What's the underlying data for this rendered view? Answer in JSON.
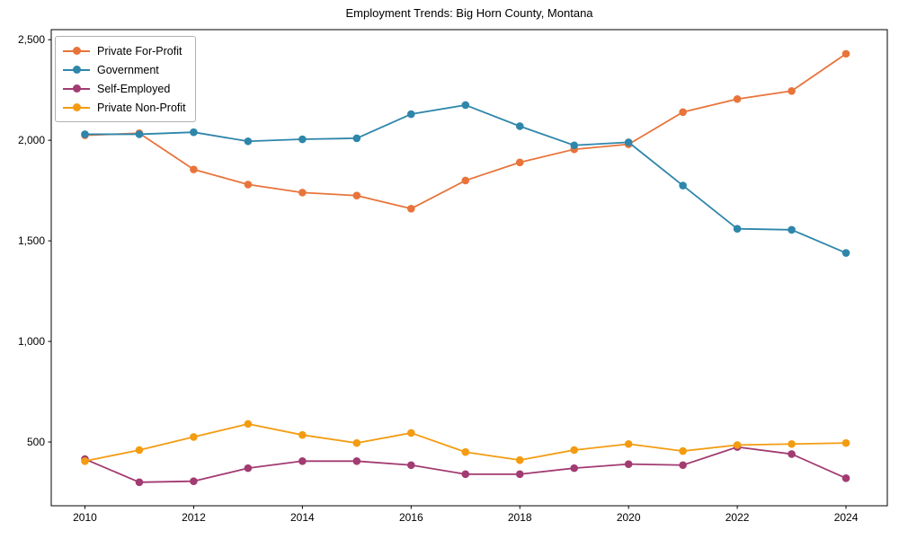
{
  "figure": {
    "title": "Employment Trends: Big Horn County, Montana"
  },
  "chart_data": {
    "type": "line",
    "title": "Employment Trends: Big Horn County, Montana",
    "xlabel": "",
    "ylabel": "",
    "x": [
      2010,
      2011,
      2012,
      2013,
      2014,
      2015,
      2016,
      2017,
      2018,
      2019,
      2020,
      2021,
      2022,
      2023,
      2024
    ],
    "series": [
      {
        "name": "Private For-Profit",
        "color": "#e8743b",
        "values": [
          2025,
          2035,
          1855,
          1780,
          1740,
          1725,
          1660,
          1800,
          1890,
          1955,
          1980,
          2140,
          2205,
          2245,
          2430
        ]
      },
      {
        "name": "Government",
        "color": "#2e86ab",
        "values": [
          2030,
          2030,
          2040,
          1995,
          2005,
          2010,
          2130,
          2175,
          2070,
          1975,
          1990,
          1775,
          1560,
          1555,
          1440
        ]
      },
      {
        "name": "Self-Employed",
        "color": "#a23b72",
        "values": [
          415,
          300,
          305,
          370,
          405,
          405,
          385,
          340,
          340,
          370,
          390,
          385,
          475,
          440,
          320
        ]
      },
      {
        "name": "Private Non-Profit",
        "color": "#f39c12",
        "values": [
          405,
          460,
          525,
          590,
          535,
          495,
          545,
          450,
          410,
          460,
          490,
          455,
          485,
          490,
          495
        ]
      }
    ],
    "xticks": [
      2010,
      2012,
      2014,
      2016,
      2018,
      2020,
      2022,
      2024
    ],
    "yticks": [
      500,
      1000,
      1500,
      2000,
      2500
    ],
    "ytick_labels": [
      "500",
      "1,000",
      "1,500",
      "2,000",
      "2,500"
    ],
    "xlim": [
      2009.38,
      2024.76
    ],
    "ylim": [
      183,
      2550
    ],
    "grid": false,
    "legend_position": "upper left"
  }
}
